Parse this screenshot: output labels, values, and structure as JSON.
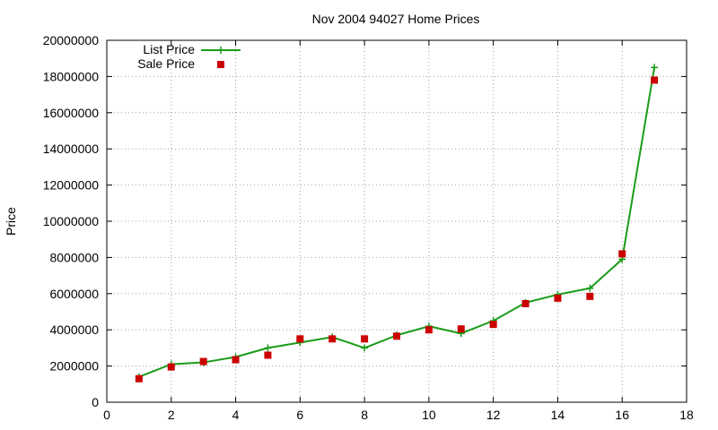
{
  "chart_data": {
    "type": "line",
    "title": "Nov 2004 94027 Home Prices",
    "xlabel": "",
    "ylabel": "Price",
    "xlim": [
      0,
      18
    ],
    "ylim": [
      0,
      20000000
    ],
    "x_ticks": [
      "0",
      "2",
      "4",
      "6",
      "8",
      "10",
      "12",
      "14",
      "16",
      "18"
    ],
    "y_ticks": [
      "0",
      "2000000",
      "4000000",
      "6000000",
      "8000000",
      "10000000",
      "12000000",
      "14000000",
      "16000000",
      "18000000",
      "20000000"
    ],
    "grid": true,
    "legend_position": "top-left",
    "series": [
      {
        "name": "List Price",
        "style": "line+cross",
        "color": "#1a9c1a",
        "x": [
          1,
          2,
          3,
          4,
          5,
          6,
          7,
          8,
          9,
          10,
          11,
          12,
          13,
          14,
          15,
          16,
          17
        ],
        "y": [
          1400000,
          2100000,
          2200000,
          2500000,
          3000000,
          3300000,
          3600000,
          3000000,
          3700000,
          4200000,
          3800000,
          4500000,
          5500000,
          5950000,
          6300000,
          7900000,
          18500000
        ]
      },
      {
        "name": "Sale Price",
        "style": "square",
        "color": "#cc0000",
        "x": [
          1,
          2,
          3,
          4,
          5,
          6,
          7,
          8,
          9,
          10,
          11,
          12,
          13,
          14,
          15,
          16,
          17
        ],
        "y": [
          1300000,
          1950000,
          2250000,
          2350000,
          2600000,
          3500000,
          3500000,
          3500000,
          3650000,
          4000000,
          4050000,
          4300000,
          5450000,
          5750000,
          5850000,
          8200000,
          17800000
        ]
      }
    ]
  }
}
